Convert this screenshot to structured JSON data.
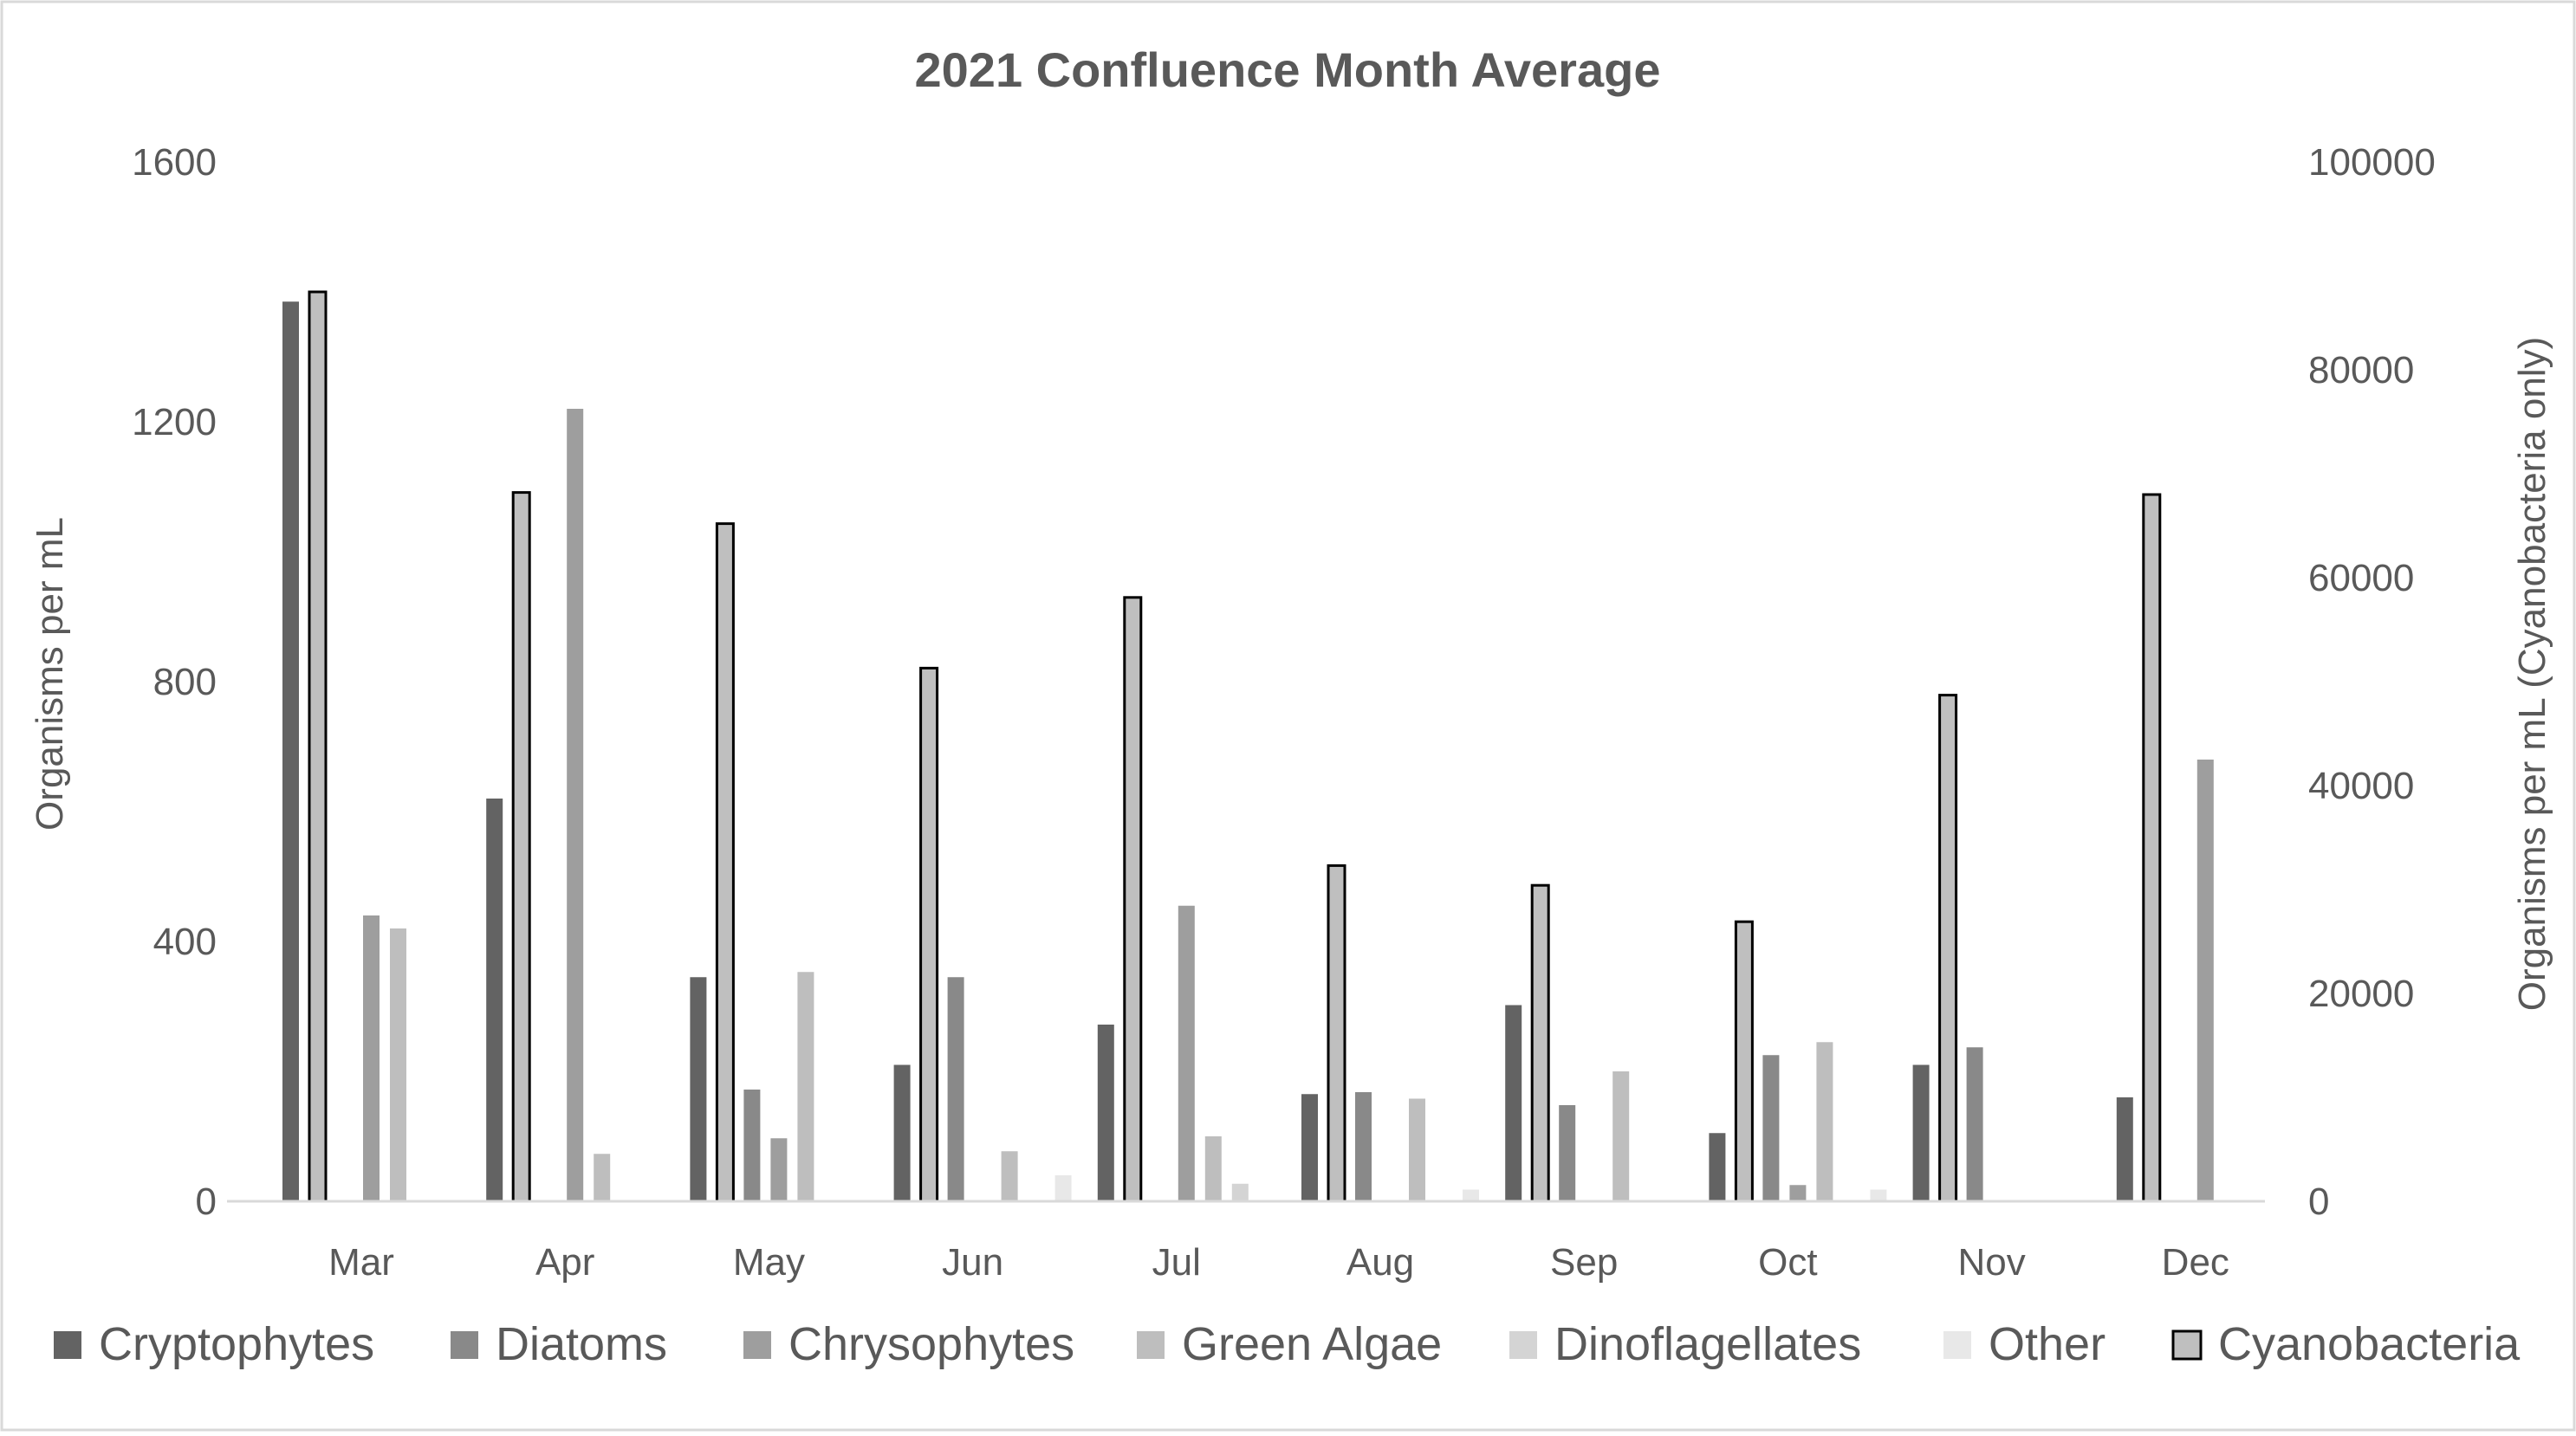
{
  "chart_data": {
    "type": "bar",
    "title": "2021 Confluence Month Average",
    "ylabel": "Organisms per mL",
    "y2label": "Organisms per mL (Cyanobacteria only)",
    "ylim": [
      0,
      1600
    ],
    "y2lim": [
      0,
      100000
    ],
    "yticks": [
      "0",
      "400",
      "800",
      "1200",
      "1600"
    ],
    "y2ticks": [
      "0",
      "20000",
      "40000",
      "60000",
      "80000",
      "100000"
    ],
    "grid": false,
    "legend": "bottom",
    "categories": [
      "Mar",
      "Apr",
      "May",
      "Jun",
      "Jul",
      "Aug",
      "Sep",
      "Oct",
      "Nov",
      "Dec"
    ],
    "series": [
      {
        "name": "Cryptophytes",
        "axis": "left",
        "color": "#636363",
        "values": [
          1385,
          620,
          345,
          210,
          272,
          165,
          302,
          105,
          210,
          160
        ]
      },
      {
        "name": "Diatoms",
        "axis": "left",
        "color": "#898989",
        "values": [
          0,
          0,
          172,
          345,
          0,
          168,
          148,
          225,
          237,
          0
        ]
      },
      {
        "name": "Chrysophytes",
        "axis": "left",
        "color": "#9e9e9e",
        "values": [
          440,
          1220,
          97,
          0,
          455,
          0,
          0,
          25,
          0,
          680
        ]
      },
      {
        "name": "Green Algae",
        "axis": "left",
        "color": "#bebebe",
        "values": [
          420,
          73,
          353,
          77,
          100,
          158,
          200,
          245,
          0,
          0
        ]
      },
      {
        "name": "Dinoflagellates",
        "axis": "left",
        "color": "#d4d4d4",
        "values": [
          0,
          0,
          0,
          0,
          27,
          0,
          0,
          0,
          0,
          0
        ]
      },
      {
        "name": "Other",
        "axis": "left",
        "color": "#e8e8e8",
        "values": [
          0,
          0,
          0,
          40,
          0,
          18,
          0,
          18,
          0,
          0
        ]
      },
      {
        "name": "Cyanobacteria",
        "axis": "right",
        "color": "#bfbfbf",
        "stroke": "#000000",
        "values": [
          87500,
          68200,
          65200,
          51300,
          58100,
          32300,
          30400,
          26900,
          48700,
          68000
        ]
      }
    ]
  }
}
